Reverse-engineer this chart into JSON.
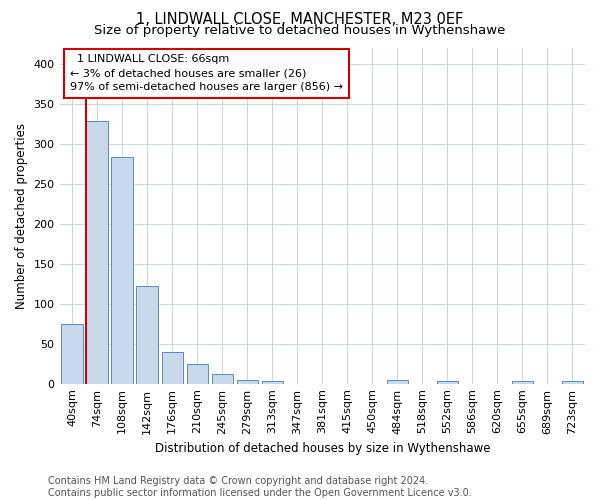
{
  "title": "1, LINDWALL CLOSE, MANCHESTER, M23 0EF",
  "subtitle": "Size of property relative to detached houses in Wythenshawe",
  "xlabel": "Distribution of detached houses by size in Wythenshawe",
  "ylabel": "Number of detached properties",
  "footer_line1": "Contains HM Land Registry data © Crown copyright and database right 2024.",
  "footer_line2": "Contains public sector information licensed under the Open Government Licence v3.0.",
  "categories": [
    "40sqm",
    "74sqm",
    "108sqm",
    "142sqm",
    "176sqm",
    "210sqm",
    "245sqm",
    "279sqm",
    "313sqm",
    "347sqm",
    "381sqm",
    "415sqm",
    "450sqm",
    "484sqm",
    "518sqm",
    "552sqm",
    "586sqm",
    "620sqm",
    "655sqm",
    "689sqm",
    "723sqm"
  ],
  "values": [
    75,
    328,
    283,
    122,
    39,
    24,
    12,
    5,
    3,
    0,
    0,
    0,
    0,
    5,
    0,
    3,
    0,
    0,
    3,
    0,
    3
  ],
  "bar_color": "#c9d9ec",
  "bar_edge_color": "#5b8db8",
  "highlight_line_color": "#cc0000",
  "annotation_line1": "  1 LINDWALL CLOSE: 66sqm",
  "annotation_line2": "← 3% of detached houses are smaller (26)",
  "annotation_line3": "97% of semi-detached houses are larger (856) →",
  "annotation_box_color": "#ffffff",
  "annotation_box_edge_color": "#cc0000",
  "ylim": [
    0,
    420
  ],
  "yticks": [
    0,
    50,
    100,
    150,
    200,
    250,
    300,
    350,
    400
  ],
  "background_color": "#ffffff",
  "grid_color": "#c8d4e0",
  "title_fontsize": 10.5,
  "subtitle_fontsize": 9.5,
  "axis_label_fontsize": 8.5,
  "tick_fontsize": 8,
  "annotation_fontsize": 8,
  "footer_fontsize": 7
}
